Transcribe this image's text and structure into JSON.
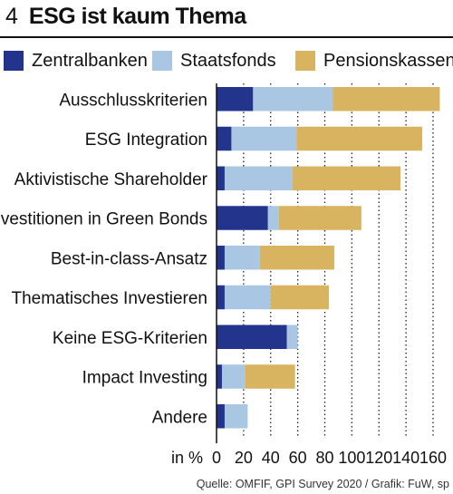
{
  "figure": {
    "number": "4",
    "title": "ESG ist kaum Thema"
  },
  "source": "Quelle: OMFIF, GPI Survey 2020 / Grafik: FuW, sp",
  "colors": {
    "Zentralbanken": "#23348c",
    "Staatsfonds": "#a9c6e3",
    "Pensionskassen": "#d9b460"
  },
  "chart_data": {
    "type": "bar",
    "orientation": "horizontal",
    "stacked": true,
    "title": "ESG ist kaum Thema",
    "xlabel": "in %",
    "xlim": [
      0,
      160
    ],
    "xticks": [
      0,
      20,
      40,
      60,
      80,
      100,
      120,
      140,
      160
    ],
    "grid": "vertical dotted",
    "legend": "top",
    "categories": [
      "Ausschlusskriterien",
      "ESG Integration",
      "Aktivistische Shareholder",
      "Investitionen in Green Bonds",
      "Best-in-class-Ansatz",
      "Thematisches Investieren",
      "Keine ESG-Kriterien",
      "Impact Investing",
      "Andere"
    ],
    "series": [
      {
        "name": "Zentralbanken",
        "values": [
          27,
          11,
          6,
          38,
          6,
          6,
          52,
          4,
          6
        ]
      },
      {
        "name": "Staatsfonds",
        "values": [
          59,
          48,
          50,
          8,
          26,
          34,
          8,
          17,
          17
        ]
      },
      {
        "name": "Pensionskassen",
        "values": [
          79,
          93,
          80,
          61,
          55,
          43,
          0,
          37,
          0
        ]
      }
    ]
  }
}
